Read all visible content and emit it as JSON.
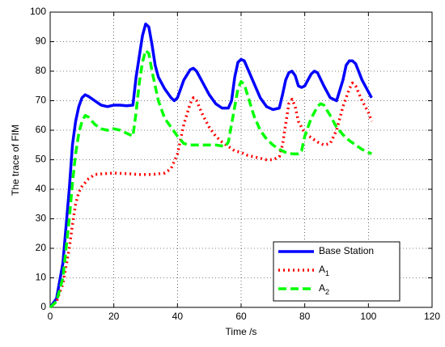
{
  "chart_data": {
    "type": "line",
    "xlabel": "Time /s",
    "ylabel": "The trace of FIM",
    "xlim": [
      0,
      120
    ],
    "xticks": [
      0,
      20,
      40,
      60,
      80,
      100,
      120
    ],
    "ylim": [
      0,
      100
    ],
    "yticks": [
      0,
      10,
      20,
      30,
      40,
      50,
      60,
      70,
      80,
      90,
      100
    ],
    "grid": true,
    "legend": "lower right",
    "series": [
      {
        "name": "Base Station",
        "color": "#0000ff",
        "style": "solid",
        "x": [
          0,
          2,
          4,
          6,
          7,
          8,
          9,
          10,
          11,
          12,
          14,
          16,
          18,
          20,
          22,
          24,
          26,
          27,
          28,
          29,
          30,
          31,
          32,
          33,
          34,
          36,
          38,
          39,
          40,
          42,
          44,
          45,
          46,
          48,
          50,
          52,
          54,
          56,
          57,
          58,
          59,
          60,
          61,
          62,
          64,
          66,
          68,
          70,
          72,
          73,
          74,
          75,
          76,
          77,
          78,
          79,
          80,
          82,
          83,
          84,
          86,
          88,
          90,
          92,
          93,
          94,
          95,
          96,
          98,
          100,
          101
        ],
        "values": [
          0,
          3,
          15,
          40,
          55,
          63,
          68,
          71,
          72,
          71.5,
          70,
          68.5,
          68,
          68.5,
          68.5,
          68.3,
          68.5,
          78,
          85,
          92,
          96,
          95,
          89,
          82,
          78,
          74,
          71,
          70,
          71,
          77,
          80.5,
          81,
          80,
          76,
          72,
          69,
          67.5,
          67.5,
          70,
          78,
          83,
          84,
          83.5,
          81,
          76,
          71,
          68,
          67,
          67.5,
          72,
          77,
          79.5,
          80,
          78.5,
          75,
          74.5,
          75,
          79,
          80,
          79.5,
          75,
          71,
          70,
          77,
          82,
          83.5,
          83.5,
          82.5,
          77,
          73,
          71
        ]
      },
      {
        "name": "A1",
        "color": "#ff0000",
        "style": "dotted",
        "x": [
          0,
          2,
          4,
          6,
          7,
          8,
          9,
          10,
          12,
          14,
          16,
          20,
          24,
          28,
          32,
          36,
          38,
          40,
          42,
          44,
          45,
          46,
          48,
          50,
          52,
          54,
          56,
          58,
          60,
          62,
          64,
          66,
          68,
          70,
          72,
          73,
          74,
          75,
          76,
          77,
          78,
          80,
          82,
          84,
          86,
          88,
          90,
          92,
          94,
          95,
          96,
          98,
          100,
          101
        ],
        "values": [
          0,
          2,
          8,
          20,
          28,
          35,
          39,
          41,
          43.5,
          45,
          45.2,
          45.5,
          45.3,
          45,
          45,
          45.5,
          47,
          52,
          62,
          69,
          71,
          70,
          65,
          61,
          58,
          56,
          54.5,
          53,
          52.5,
          51.5,
          51,
          50.5,
          50,
          50,
          51,
          55,
          62,
          69,
          70.5,
          68,
          63,
          59,
          57.5,
          56,
          55,
          55.5,
          60,
          68,
          74,
          76,
          75,
          70,
          66,
          63
        ]
      },
      {
        "name": "A2",
        "color": "#00ff00",
        "style": "dashed",
        "x": [
          0,
          2,
          4,
          6,
          7,
          8,
          9,
          10,
          11,
          12,
          14,
          16,
          18,
          20,
          22,
          24,
          26,
          27,
          28,
          29,
          30,
          31,
          32,
          34,
          36,
          38,
          40,
          42,
          44,
          48,
          52,
          55,
          56,
          58,
          59,
          60,
          61,
          62,
          64,
          66,
          68,
          70,
          72,
          74,
          76,
          78,
          79,
          80,
          82,
          84,
          85,
          86,
          88,
          90,
          92,
          94,
          96,
          98,
          100,
          101
        ],
        "values": [
          0,
          2,
          10,
          30,
          42,
          52,
          59,
          63,
          65,
          64.5,
          62,
          60.5,
          60,
          60.5,
          60,
          59,
          58,
          66,
          76,
          83,
          87,
          86,
          80,
          70,
          64,
          61,
          58,
          55.5,
          55,
          55,
          55,
          54.5,
          56,
          68,
          74,
          76.5,
          75.5,
          72,
          65,
          60,
          57,
          55,
          53.5,
          52.5,
          52,
          52,
          53,
          58,
          64,
          68,
          69,
          68.5,
          65,
          61,
          58.5,
          56.5,
          55,
          53.5,
          52.5,
          52
        ]
      }
    ]
  }
}
